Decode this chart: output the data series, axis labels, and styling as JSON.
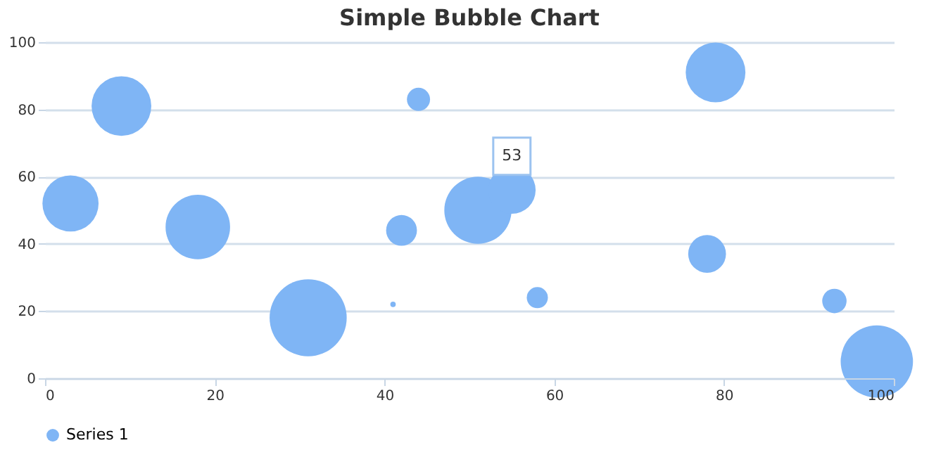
{
  "chart_data": {
    "type": "bubble",
    "title": "Simple Bubble Chart",
    "x": [
      3,
      9,
      18,
      31,
      41,
      42,
      44,
      51,
      55,
      58,
      78,
      79,
      93,
      98
    ],
    "series": [
      {
        "name": "Series 1",
        "color": "#7fb5f5",
        "values": [
          52,
          81,
          45,
          18,
          22,
          44,
          83,
          50,
          56,
          24,
          37,
          91,
          23,
          5
        ],
        "sizes": [
          0.53,
          0.6,
          0.7,
          1,
          0.005,
          0.16,
          0.09,
          0.76,
          0.38,
          0.075,
          0.24,
          0.6,
          0.1,
          0.88
        ]
      }
    ],
    "xlim": [
      0,
      100
    ],
    "xticks": [
      0,
      20,
      40,
      60,
      80,
      100
    ],
    "ylim": [
      0,
      100
    ],
    "yticks": [
      0,
      20,
      40,
      60,
      80,
      100
    ],
    "grid": "y",
    "legend": "bottom",
    "annotations": [
      {
        "text": "53",
        "x": 55,
        "y": 56
      }
    ]
  }
}
